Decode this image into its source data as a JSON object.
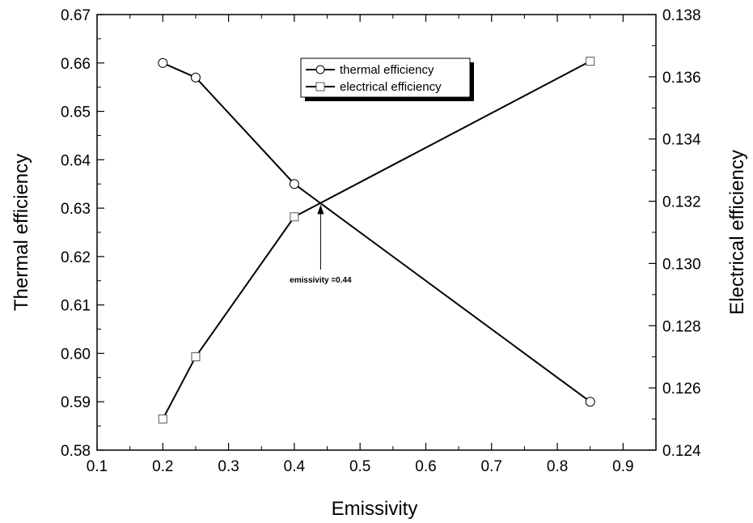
{
  "chart_data": {
    "type": "line",
    "xlabel": "Emissivity",
    "ylabel_left": "Thermal efficiency",
    "ylabel_right": "Electrical efficiency",
    "xlim": [
      0.1,
      0.95
    ],
    "ylim_left": [
      0.58,
      0.67
    ],
    "ylim_right": [
      0.124,
      0.138
    ],
    "x_ticks": [
      "0.1",
      "0.2",
      "0.3",
      "0.4",
      "0.5",
      "0.6",
      "0.7",
      "0.8",
      "0.9"
    ],
    "y_left_ticks": [
      "0.58",
      "0.59",
      "0.60",
      "0.61",
      "0.62",
      "0.63",
      "0.64",
      "0.65",
      "0.66",
      "0.67"
    ],
    "y_right_ticks": [
      "0.124",
      "0.126",
      "0.128",
      "0.130",
      "0.132",
      "0.134",
      "0.136",
      "0.138"
    ],
    "grid": false,
    "legend_position": "top-center",
    "series": [
      {
        "name": "thermal efficiency",
        "axis": "left",
        "marker": "circle",
        "x": [
          0.2,
          0.25,
          0.4,
          0.85
        ],
        "y": [
          0.66,
          0.657,
          0.635,
          0.59
        ]
      },
      {
        "name": "electrical efficiency",
        "axis": "right",
        "marker": "square",
        "x": [
          0.2,
          0.25,
          0.4,
          0.85
        ],
        "y": [
          0.125,
          0.127,
          0.1315,
          0.1365
        ]
      }
    ],
    "annotation": {
      "text": "emissivity =0.44",
      "x": 0.44,
      "y_left": 0.6311
    },
    "colors": {
      "line": "#000000",
      "marker_fill": "#ffffff",
      "marker_stroke": "#000000"
    }
  }
}
